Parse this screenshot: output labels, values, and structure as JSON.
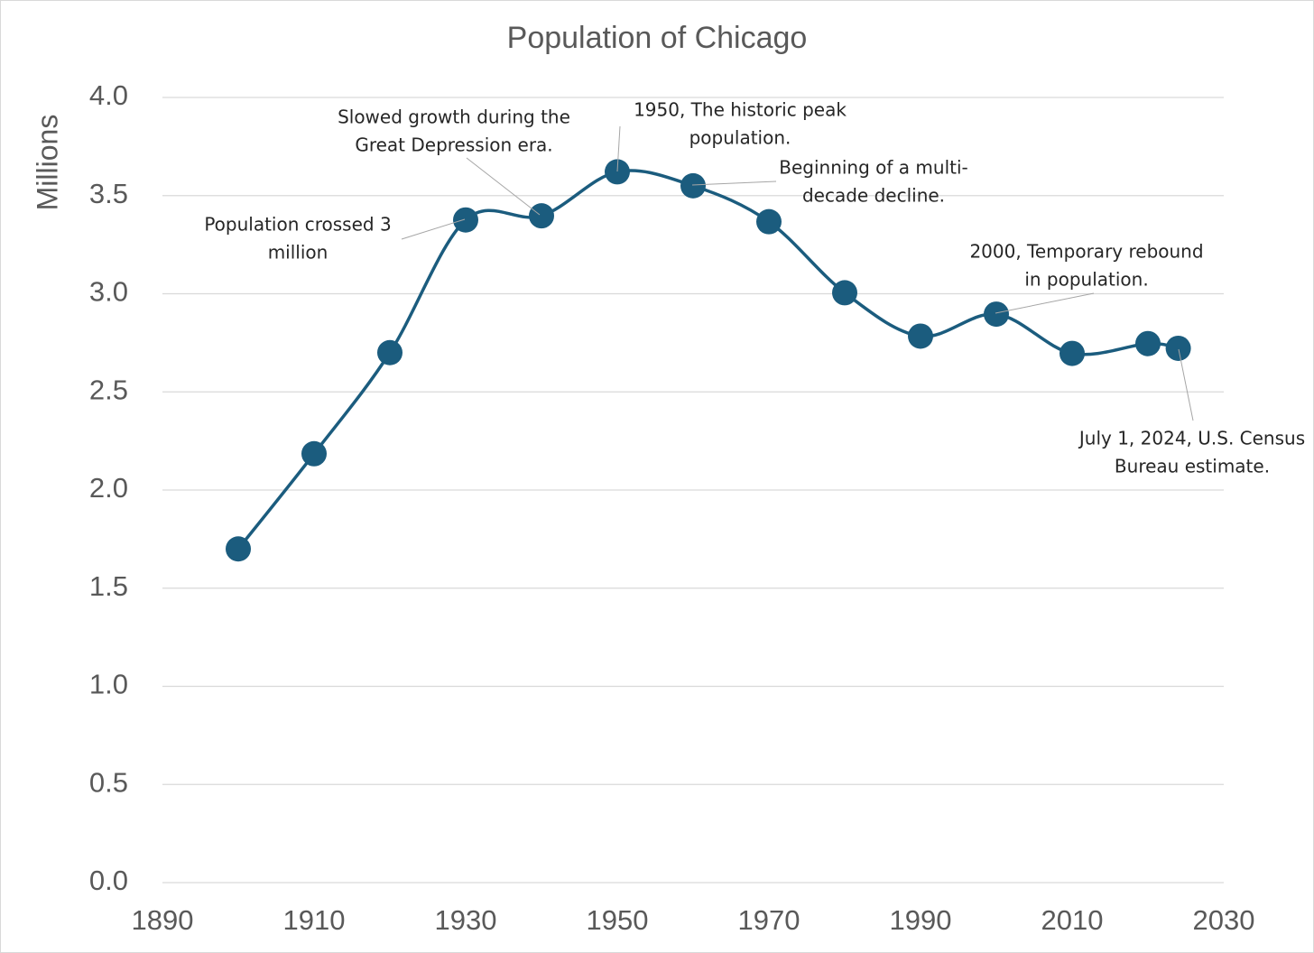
{
  "chart_data": {
    "type": "line",
    "title": "Population of Chicago",
    "y_label": "Millions",
    "x": [
      1900,
      1910,
      1920,
      1930,
      1940,
      1950,
      1960,
      1970,
      1980,
      1990,
      2000,
      2010,
      2020,
      2024
    ],
    "series": [
      {
        "name": "Population",
        "color": "#1b5c7e",
        "values": [
          1.7,
          2.185,
          2.7,
          3.376,
          3.397,
          3.621,
          3.55,
          3.367,
          3.005,
          2.784,
          2.896,
          2.696,
          2.746,
          2.722
        ]
      }
    ],
    "xlim": [
      1890,
      2030
    ],
    "xticks": [
      1890,
      1910,
      1930,
      1950,
      1970,
      1990,
      2010,
      2030
    ],
    "ylim": [
      0,
      4
    ],
    "yticks": [
      {
        "value": 0,
        "label": "0.0"
      },
      0.5,
      {
        "value": 1,
        "label": "1.0"
      },
      1.5,
      {
        "value": 2,
        "label": "2.0"
      },
      2.5,
      {
        "value": 3,
        "label": "3.0"
      },
      3.5,
      {
        "value": 4,
        "label": "4.0"
      }
    ],
    "grid": true,
    "annotations": [
      [
        "Population crossed 3",
        "million"
      ],
      [
        "Slowed growth during the",
        "Great Depression era."
      ],
      [
        "1950, The historic peak",
        "population."
      ],
      [
        "Beginning of a multi-",
        "decade decline."
      ],
      [
        "2000, Temporary rebound",
        "in population."
      ],
      [
        "July 1, 2024, U.S. Census",
        "Bureau estimate."
      ]
    ]
  }
}
